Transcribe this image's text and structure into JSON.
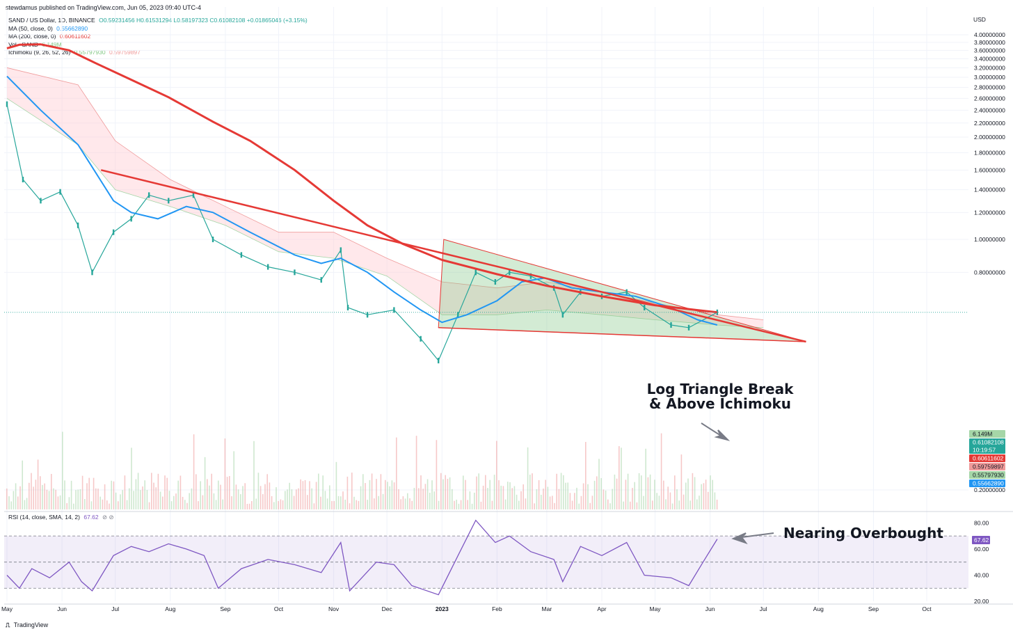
{
  "publisher_note": "stewdamus published on TradingView.com, Jun 05, 2023 09:40 UTC-4",
  "legend": {
    "symbol_line": {
      "label": "SAND / US Dollar, 1D, BINANCE",
      "values": "O0.59231456 H0.61531294 L0.58197323 C0.61082108 +0.01865046 (+3.15%)"
    },
    "ma50": {
      "label": "MA (50, close, 0)",
      "value": "0.55662890",
      "color": "#2196f3"
    },
    "ma200": {
      "label": "MA (200, close, 0)",
      "value": "0.60611602",
      "color": "#e53935"
    },
    "volume": {
      "label": "Vol · SAND",
      "value": "6.149M",
      "color": "#81c784"
    },
    "ichimoku": {
      "label": "Ichimoku (9, 26, 52, 26)",
      "value1": "0.55797930",
      "value2": "0.59759897"
    }
  },
  "rsi_legend": {
    "label": "RSI (14, close, SMA, 14, 2)",
    "value": "67.62",
    "symbols": "⊘ ⊘"
  },
  "currency": "USD",
  "branding": {
    "icon": "tradingview-logo-icon",
    "label": "TradingView"
  },
  "annotations": {
    "triangle": [
      "Log Triangle Break",
      "& Above Ichimoku"
    ],
    "rsi": "Nearing Overbought"
  },
  "price_badges": [
    {
      "text": "6.149M",
      "color": "#a5d6a7",
      "text_color": "#131722"
    },
    {
      "text": "0.61082108",
      "sub": "10:19:57",
      "color": "#26a69a",
      "text_color": "#ffffff"
    },
    {
      "text": "0.60611602",
      "color": "#e53935",
      "text_color": "#ffffff"
    },
    {
      "text": "0.59759897",
      "color": "#ef9a9a",
      "text_color": "#131722"
    },
    {
      "text": "0.55797930",
      "color": "#a5d6a7",
      "text_color": "#131722"
    },
    {
      "text": "0.55662890",
      "color": "#2196f3",
      "text_color": "#ffffff"
    }
  ],
  "rsi_badge": {
    "text": "67.62",
    "color": "#7e57c2"
  },
  "chart_data": [
    {
      "type": "line",
      "title": "SAND / US Dollar, 1D, BINANCE",
      "y_scale": "log",
      "y_tick_labels": [
        "0.20000000",
        "0.80000000",
        "1.00000000",
        "1.20000000",
        "1.40000000",
        "1.60000000",
        "1.80000000",
        "2.00000000",
        "2.20000000",
        "2.40000000",
        "2.60000000",
        "2.80000000",
        "3.00000000",
        "3.20000000",
        "3.40000000",
        "3.60000000",
        "3.80000000",
        "4.00000000"
      ],
      "x_tick_labels": [
        "May",
        "Jun",
        "Jul",
        "Aug",
        "Sep",
        "Oct",
        "Nov",
        "Dec",
        "2023",
        "Feb",
        "Mar",
        "Apr",
        "May",
        "Jun",
        "Jul",
        "Aug",
        "Sep",
        "Oct"
      ],
      "series": [
        {
          "name": "SAND / US Dollar",
          "color": "#26a69a",
          "points": [
            [
              "2022-05-01",
              2.5
            ],
            [
              "2022-05-10",
              1.5
            ],
            [
              "2022-05-20",
              1.3
            ],
            [
              "2022-05-31",
              1.38
            ],
            [
              "2022-06-10",
              1.1
            ],
            [
              "2022-06-18",
              0.8
            ],
            [
              "2022-06-30",
              1.05
            ],
            [
              "2022-07-10",
              1.15
            ],
            [
              "2022-07-20",
              1.35
            ],
            [
              "2022-07-31",
              1.3
            ],
            [
              "2022-08-14",
              1.35
            ],
            [
              "2022-08-25",
              1.0
            ],
            [
              "2022-09-10",
              0.9
            ],
            [
              "2022-09-25",
              0.83
            ],
            [
              "2022-10-10",
              0.8
            ],
            [
              "2022-10-25",
              0.76
            ],
            [
              "2022-11-05",
              0.93
            ],
            [
              "2022-11-09",
              0.63
            ],
            [
              "2022-11-20",
              0.6
            ],
            [
              "2022-12-05",
              0.62
            ],
            [
              "2022-12-20",
              0.51
            ],
            [
              "2022-12-30",
              0.44
            ],
            [
              "2023-01-10",
              0.6
            ],
            [
              "2023-01-20",
              0.8
            ],
            [
              "2023-01-31",
              0.75
            ],
            [
              "2023-02-08",
              0.8
            ],
            [
              "2023-02-20",
              0.78
            ],
            [
              "2023-03-05",
              0.72
            ],
            [
              "2023-03-10",
              0.6
            ],
            [
              "2023-03-20",
              0.7
            ],
            [
              "2023-04-01",
              0.68
            ],
            [
              "2023-04-15",
              0.7
            ],
            [
              "2023-04-25",
              0.63
            ],
            [
              "2023-05-10",
              0.56
            ],
            [
              "2023-05-20",
              0.55
            ],
            [
              "2023-06-05",
              0.61
            ]
          ]
        },
        {
          "name": "MA (50, close, 0)",
          "color": "#2196f3",
          "points": [
            [
              "2022-05-01",
              3.02
            ],
            [
              "2022-05-20",
              2.4
            ],
            [
              "2022-06-10",
              1.9
            ],
            [
              "2022-06-30",
              1.3
            ],
            [
              "2022-07-10",
              1.2
            ],
            [
              "2022-07-25",
              1.15
            ],
            [
              "2022-08-10",
              1.25
            ],
            [
              "2022-08-25",
              1.2
            ],
            [
              "2022-09-15",
              1.05
            ],
            [
              "2022-10-10",
              0.9
            ],
            [
              "2022-10-25",
              0.85
            ],
            [
              "2022-11-05",
              0.88
            ],
            [
              "2022-11-20",
              0.8
            ],
            [
              "2022-12-05",
              0.7
            ],
            [
              "2022-12-20",
              0.62
            ],
            [
              "2023-01-01",
              0.57
            ],
            [
              "2023-01-15",
              0.6
            ],
            [
              "2023-02-01",
              0.66
            ],
            [
              "2023-02-15",
              0.75
            ],
            [
              "2023-02-28",
              0.77
            ],
            [
              "2023-03-15",
              0.72
            ],
            [
              "2023-04-01",
              0.7
            ],
            [
              "2023-04-20",
              0.68
            ],
            [
              "2023-05-10",
              0.63
            ],
            [
              "2023-05-25",
              0.58
            ],
            [
              "2023-06-05",
              0.56
            ]
          ]
        },
        {
          "name": "MA (200, close, 0)",
          "color": "#e53935",
          "points": [
            [
              "2022-05-01",
              3.65
            ],
            [
              "2022-05-08",
              3.74
            ],
            [
              "2022-05-20",
              3.75
            ],
            [
              "2022-06-05",
              3.6
            ],
            [
              "2022-06-20",
              3.3
            ],
            [
              "2022-07-10",
              2.95
            ],
            [
              "2022-07-31",
              2.62
            ],
            [
              "2022-08-25",
              2.22
            ],
            [
              "2022-09-15",
              1.95
            ],
            [
              "2022-10-10",
              1.6
            ],
            [
              "2022-11-01",
              1.3
            ],
            [
              "2022-11-20",
              1.1
            ],
            [
              "2022-12-10",
              0.97
            ],
            [
              "2023-01-01",
              0.87
            ],
            [
              "2023-02-01",
              0.79
            ],
            [
              "2023-03-01",
              0.73
            ],
            [
              "2023-04-01",
              0.68
            ],
            [
              "2023-05-01",
              0.64
            ],
            [
              "2023-06-05",
              0.61
            ]
          ]
        },
        {
          "name": "Ichimoku (9, 26, 52, 26)",
          "color": "#ef9a9a",
          "points": [
            [
              "2022-05-01",
              3.2
            ],
            [
              "2022-06-10",
              2.85
            ],
            [
              "2022-07-01",
              1.95
            ],
            [
              "2022-08-01",
              1.5
            ],
            [
              "2022-09-01",
              1.25
            ],
            [
              "2022-10-01",
              1.05
            ],
            [
              "2022-11-01",
              1.05
            ],
            [
              "2022-12-01",
              0.88
            ],
            [
              "2023-01-01",
              0.75
            ],
            [
              "2023-02-01",
              0.72
            ],
            [
              "2023-03-01",
              0.75
            ],
            [
              "2023-04-01",
              0.7
            ],
            [
              "2023-05-01",
              0.65
            ],
            [
              "2023-06-05",
              0.6
            ],
            [
              "2023-07-01",
              0.58
            ]
          ]
        },
        {
          "name": "Ichimoku (9, 26, 52, 26) lower",
          "color": "#a5d6a7",
          "points": [
            [
              "2022-05-01",
              2.6
            ],
            [
              "2022-06-10",
              1.9
            ],
            [
              "2022-07-01",
              1.4
            ],
            [
              "2022-08-01",
              1.25
            ],
            [
              "2022-09-01",
              1.1
            ],
            [
              "2022-10-01",
              0.92
            ],
            [
              "2022-11-01",
              0.88
            ],
            [
              "2022-12-01",
              0.78
            ],
            [
              "2023-01-01",
              0.6
            ],
            [
              "2023-02-01",
              0.6
            ],
            [
              "2023-03-01",
              0.62
            ],
            [
              "2023-04-01",
              0.6
            ],
            [
              "2023-05-01",
              0.58
            ],
            [
              "2023-06-05",
              0.56
            ],
            [
              "2023-07-01",
              0.55
            ]
          ]
        }
      ],
      "trendlines": [
        {
          "points": [
            [
              "2022-06-23",
              1.6
            ],
            [
              "2023-07-25",
              0.5
            ]
          ],
          "color": "#e53935"
        },
        {
          "points": [
            [
              "2022-12-30",
              0.55
            ],
            [
              "2023-07-25",
              0.5
            ]
          ],
          "color": "#e53935"
        }
      ],
      "triangle_pattern": {
        "points": [
          [
            "2023-01-02",
            1.0
          ],
          [
            "2022-12-30",
            0.55
          ],
          [
            "2023-07-25",
            0.5
          ]
        ],
        "color": "#81c784"
      },
      "volume": {
        "name": "Vol · SAND",
        "last": "6.149M"
      }
    },
    {
      "type": "line",
      "title": "RSI (14, close, SMA, 14, 2)",
      "y_tick_labels": [
        "20.00",
        "40.00",
        "60.00",
        "80.00"
      ],
      "ylim": [
        20,
        85
      ],
      "bands": {
        "upper": 70,
        "middle": 50,
        "lower": 30
      },
      "series": [
        {
          "name": "RSI",
          "color": "#7e57c2",
          "points": [
            [
              "2022-05-01",
              40
            ],
            [
              "2022-05-08",
              30
            ],
            [
              "2022-05-15",
              45
            ],
            [
              "2022-05-25",
              38
            ],
            [
              "2022-06-05",
              50
            ],
            [
              "2022-06-12",
              35
            ],
            [
              "2022-06-18",
              28
            ],
            [
              "2022-06-30",
              55
            ],
            [
              "2022-07-10",
              62
            ],
            [
              "2022-07-20",
              58
            ],
            [
              "2022-07-31",
              64
            ],
            [
              "2022-08-10",
              60
            ],
            [
              "2022-08-20",
              55
            ],
            [
              "2022-08-28",
              30
            ],
            [
              "2022-09-10",
              45
            ],
            [
              "2022-09-25",
              52
            ],
            [
              "2022-10-10",
              48
            ],
            [
              "2022-10-25",
              42
            ],
            [
              "2022-11-05",
              65
            ],
            [
              "2022-11-10",
              28
            ],
            [
              "2022-11-25",
              50
            ],
            [
              "2022-12-05",
              48
            ],
            [
              "2022-12-15",
              32
            ],
            [
              "2022-12-30",
              25
            ],
            [
              "2023-01-10",
              55
            ],
            [
              "2023-01-20",
              82
            ],
            [
              "2023-01-31",
              65
            ],
            [
              "2023-02-08",
              70
            ],
            [
              "2023-02-20",
              58
            ],
            [
              "2023-03-05",
              52
            ],
            [
              "2023-03-10",
              35
            ],
            [
              "2023-03-20",
              62
            ],
            [
              "2023-04-01",
              55
            ],
            [
              "2023-04-15",
              65
            ],
            [
              "2023-04-25",
              40
            ],
            [
              "2023-05-10",
              38
            ],
            [
              "2023-05-20",
              32
            ],
            [
              "2023-05-28",
              50
            ],
            [
              "2023-06-05",
              67.62
            ]
          ]
        }
      ]
    }
  ]
}
